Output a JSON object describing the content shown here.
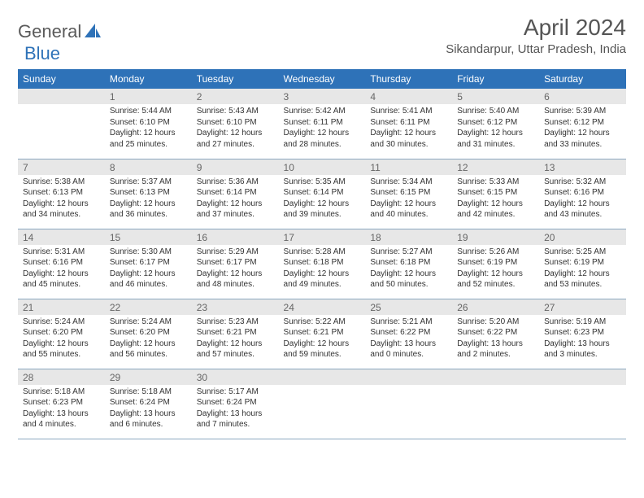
{
  "logo": {
    "word1": "General",
    "word2": "Blue"
  },
  "header": {
    "title": "April 2024",
    "location": "Sikandarpur, Uttar Pradesh, India"
  },
  "colors": {
    "brand": "#2e72b8",
    "header_bg": "#2e72b8",
    "header_text": "#ffffff",
    "daynum_bg": "#e7e7e7",
    "daynum_text": "#666666",
    "rule": "#8ca8c0",
    "body_text": "#333333",
    "page_bg": "#ffffff"
  },
  "day_headers": [
    "Sunday",
    "Monday",
    "Tuesday",
    "Wednesday",
    "Thursday",
    "Friday",
    "Saturday"
  ],
  "weeks": [
    [
      null,
      {
        "n": "1",
        "sunrise": "5:44 AM",
        "sunset": "6:10 PM",
        "d_h": "12",
        "d_m": "25"
      },
      {
        "n": "2",
        "sunrise": "5:43 AM",
        "sunset": "6:10 PM",
        "d_h": "12",
        "d_m": "27"
      },
      {
        "n": "3",
        "sunrise": "5:42 AM",
        "sunset": "6:11 PM",
        "d_h": "12",
        "d_m": "28"
      },
      {
        "n": "4",
        "sunrise": "5:41 AM",
        "sunset": "6:11 PM",
        "d_h": "12",
        "d_m": "30"
      },
      {
        "n": "5",
        "sunrise": "5:40 AM",
        "sunset": "6:12 PM",
        "d_h": "12",
        "d_m": "31"
      },
      {
        "n": "6",
        "sunrise": "5:39 AM",
        "sunset": "6:12 PM",
        "d_h": "12",
        "d_m": "33"
      }
    ],
    [
      {
        "n": "7",
        "sunrise": "5:38 AM",
        "sunset": "6:13 PM",
        "d_h": "12",
        "d_m": "34"
      },
      {
        "n": "8",
        "sunrise": "5:37 AM",
        "sunset": "6:13 PM",
        "d_h": "12",
        "d_m": "36"
      },
      {
        "n": "9",
        "sunrise": "5:36 AM",
        "sunset": "6:14 PM",
        "d_h": "12",
        "d_m": "37"
      },
      {
        "n": "10",
        "sunrise": "5:35 AM",
        "sunset": "6:14 PM",
        "d_h": "12",
        "d_m": "39"
      },
      {
        "n": "11",
        "sunrise": "5:34 AM",
        "sunset": "6:15 PM",
        "d_h": "12",
        "d_m": "40"
      },
      {
        "n": "12",
        "sunrise": "5:33 AM",
        "sunset": "6:15 PM",
        "d_h": "12",
        "d_m": "42"
      },
      {
        "n": "13",
        "sunrise": "5:32 AM",
        "sunset": "6:16 PM",
        "d_h": "12",
        "d_m": "43"
      }
    ],
    [
      {
        "n": "14",
        "sunrise": "5:31 AM",
        "sunset": "6:16 PM",
        "d_h": "12",
        "d_m": "45"
      },
      {
        "n": "15",
        "sunrise": "5:30 AM",
        "sunset": "6:17 PM",
        "d_h": "12",
        "d_m": "46"
      },
      {
        "n": "16",
        "sunrise": "5:29 AM",
        "sunset": "6:17 PM",
        "d_h": "12",
        "d_m": "48"
      },
      {
        "n": "17",
        "sunrise": "5:28 AM",
        "sunset": "6:18 PM",
        "d_h": "12",
        "d_m": "49"
      },
      {
        "n": "18",
        "sunrise": "5:27 AM",
        "sunset": "6:18 PM",
        "d_h": "12",
        "d_m": "50"
      },
      {
        "n": "19",
        "sunrise": "5:26 AM",
        "sunset": "6:19 PM",
        "d_h": "12",
        "d_m": "52"
      },
      {
        "n": "20",
        "sunrise": "5:25 AM",
        "sunset": "6:19 PM",
        "d_h": "12",
        "d_m": "53"
      }
    ],
    [
      {
        "n": "21",
        "sunrise": "5:24 AM",
        "sunset": "6:20 PM",
        "d_h": "12",
        "d_m": "55"
      },
      {
        "n": "22",
        "sunrise": "5:24 AM",
        "sunset": "6:20 PM",
        "d_h": "12",
        "d_m": "56"
      },
      {
        "n": "23",
        "sunrise": "5:23 AM",
        "sunset": "6:21 PM",
        "d_h": "12",
        "d_m": "57"
      },
      {
        "n": "24",
        "sunrise": "5:22 AM",
        "sunset": "6:21 PM",
        "d_h": "12",
        "d_m": "59"
      },
      {
        "n": "25",
        "sunrise": "5:21 AM",
        "sunset": "6:22 PM",
        "d_h": "13",
        "d_m": "0"
      },
      {
        "n": "26",
        "sunrise": "5:20 AM",
        "sunset": "6:22 PM",
        "d_h": "13",
        "d_m": "2"
      },
      {
        "n": "27",
        "sunrise": "5:19 AM",
        "sunset": "6:23 PM",
        "d_h": "13",
        "d_m": "3"
      }
    ],
    [
      {
        "n": "28",
        "sunrise": "5:18 AM",
        "sunset": "6:23 PM",
        "d_h": "13",
        "d_m": "4"
      },
      {
        "n": "29",
        "sunrise": "5:18 AM",
        "sunset": "6:24 PM",
        "d_h": "13",
        "d_m": "6"
      },
      {
        "n": "30",
        "sunrise": "5:17 AM",
        "sunset": "6:24 PM",
        "d_h": "13",
        "d_m": "7"
      },
      null,
      null,
      null,
      null
    ]
  ],
  "labels": {
    "sunrise": "Sunrise: ",
    "sunset": "Sunset: ",
    "daylight_pre": "Daylight: ",
    "hours_word": " hours and ",
    "minutes_word": " minutes."
  },
  "typography": {
    "title_fontsize": 28,
    "location_fontsize": 15,
    "th_fontsize": 12,
    "daynum_fontsize": 12,
    "body_fontsize": 10
  }
}
